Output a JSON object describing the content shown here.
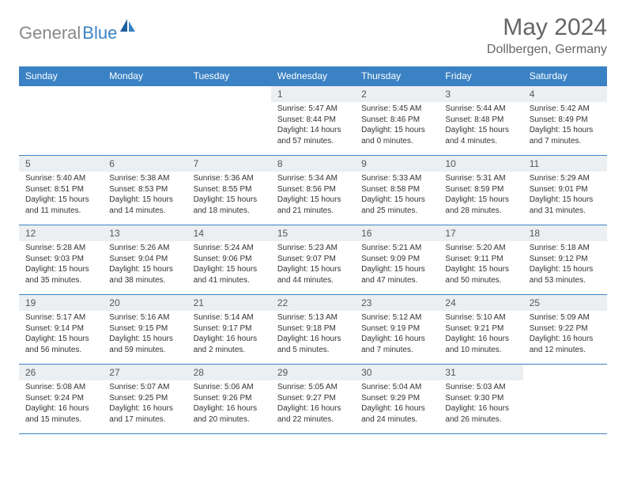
{
  "brand": {
    "part1": "General",
    "part2": "Blue"
  },
  "title": "May 2024",
  "location": "Dollbergen, Germany",
  "colors": {
    "header_bg": "#3b82c4",
    "header_text": "#ffffff",
    "daynum_bg": "#eceff1",
    "border": "#3b82c4",
    "body_text": "#333333",
    "title_text": "#666666"
  },
  "weekdays": [
    "Sunday",
    "Monday",
    "Tuesday",
    "Wednesday",
    "Thursday",
    "Friday",
    "Saturday"
  ],
  "weeks": [
    [
      {
        "n": "",
        "sr": "",
        "ss": "",
        "dl": ""
      },
      {
        "n": "",
        "sr": "",
        "ss": "",
        "dl": ""
      },
      {
        "n": "",
        "sr": "",
        "ss": "",
        "dl": ""
      },
      {
        "n": "1",
        "sr": "Sunrise: 5:47 AM",
        "ss": "Sunset: 8:44 PM",
        "dl": "Daylight: 14 hours and 57 minutes."
      },
      {
        "n": "2",
        "sr": "Sunrise: 5:45 AM",
        "ss": "Sunset: 8:46 PM",
        "dl": "Daylight: 15 hours and 0 minutes."
      },
      {
        "n": "3",
        "sr": "Sunrise: 5:44 AM",
        "ss": "Sunset: 8:48 PM",
        "dl": "Daylight: 15 hours and 4 minutes."
      },
      {
        "n": "4",
        "sr": "Sunrise: 5:42 AM",
        "ss": "Sunset: 8:49 PM",
        "dl": "Daylight: 15 hours and 7 minutes."
      }
    ],
    [
      {
        "n": "5",
        "sr": "Sunrise: 5:40 AM",
        "ss": "Sunset: 8:51 PM",
        "dl": "Daylight: 15 hours and 11 minutes."
      },
      {
        "n": "6",
        "sr": "Sunrise: 5:38 AM",
        "ss": "Sunset: 8:53 PM",
        "dl": "Daylight: 15 hours and 14 minutes."
      },
      {
        "n": "7",
        "sr": "Sunrise: 5:36 AM",
        "ss": "Sunset: 8:55 PM",
        "dl": "Daylight: 15 hours and 18 minutes."
      },
      {
        "n": "8",
        "sr": "Sunrise: 5:34 AM",
        "ss": "Sunset: 8:56 PM",
        "dl": "Daylight: 15 hours and 21 minutes."
      },
      {
        "n": "9",
        "sr": "Sunrise: 5:33 AM",
        "ss": "Sunset: 8:58 PM",
        "dl": "Daylight: 15 hours and 25 minutes."
      },
      {
        "n": "10",
        "sr": "Sunrise: 5:31 AM",
        "ss": "Sunset: 8:59 PM",
        "dl": "Daylight: 15 hours and 28 minutes."
      },
      {
        "n": "11",
        "sr": "Sunrise: 5:29 AM",
        "ss": "Sunset: 9:01 PM",
        "dl": "Daylight: 15 hours and 31 minutes."
      }
    ],
    [
      {
        "n": "12",
        "sr": "Sunrise: 5:28 AM",
        "ss": "Sunset: 9:03 PM",
        "dl": "Daylight: 15 hours and 35 minutes."
      },
      {
        "n": "13",
        "sr": "Sunrise: 5:26 AM",
        "ss": "Sunset: 9:04 PM",
        "dl": "Daylight: 15 hours and 38 minutes."
      },
      {
        "n": "14",
        "sr": "Sunrise: 5:24 AM",
        "ss": "Sunset: 9:06 PM",
        "dl": "Daylight: 15 hours and 41 minutes."
      },
      {
        "n": "15",
        "sr": "Sunrise: 5:23 AM",
        "ss": "Sunset: 9:07 PM",
        "dl": "Daylight: 15 hours and 44 minutes."
      },
      {
        "n": "16",
        "sr": "Sunrise: 5:21 AM",
        "ss": "Sunset: 9:09 PM",
        "dl": "Daylight: 15 hours and 47 minutes."
      },
      {
        "n": "17",
        "sr": "Sunrise: 5:20 AM",
        "ss": "Sunset: 9:11 PM",
        "dl": "Daylight: 15 hours and 50 minutes."
      },
      {
        "n": "18",
        "sr": "Sunrise: 5:18 AM",
        "ss": "Sunset: 9:12 PM",
        "dl": "Daylight: 15 hours and 53 minutes."
      }
    ],
    [
      {
        "n": "19",
        "sr": "Sunrise: 5:17 AM",
        "ss": "Sunset: 9:14 PM",
        "dl": "Daylight: 15 hours and 56 minutes."
      },
      {
        "n": "20",
        "sr": "Sunrise: 5:16 AM",
        "ss": "Sunset: 9:15 PM",
        "dl": "Daylight: 15 hours and 59 minutes."
      },
      {
        "n": "21",
        "sr": "Sunrise: 5:14 AM",
        "ss": "Sunset: 9:17 PM",
        "dl": "Daylight: 16 hours and 2 minutes."
      },
      {
        "n": "22",
        "sr": "Sunrise: 5:13 AM",
        "ss": "Sunset: 9:18 PM",
        "dl": "Daylight: 16 hours and 5 minutes."
      },
      {
        "n": "23",
        "sr": "Sunrise: 5:12 AM",
        "ss": "Sunset: 9:19 PM",
        "dl": "Daylight: 16 hours and 7 minutes."
      },
      {
        "n": "24",
        "sr": "Sunrise: 5:10 AM",
        "ss": "Sunset: 9:21 PM",
        "dl": "Daylight: 16 hours and 10 minutes."
      },
      {
        "n": "25",
        "sr": "Sunrise: 5:09 AM",
        "ss": "Sunset: 9:22 PM",
        "dl": "Daylight: 16 hours and 12 minutes."
      }
    ],
    [
      {
        "n": "26",
        "sr": "Sunrise: 5:08 AM",
        "ss": "Sunset: 9:24 PM",
        "dl": "Daylight: 16 hours and 15 minutes."
      },
      {
        "n": "27",
        "sr": "Sunrise: 5:07 AM",
        "ss": "Sunset: 9:25 PM",
        "dl": "Daylight: 16 hours and 17 minutes."
      },
      {
        "n": "28",
        "sr": "Sunrise: 5:06 AM",
        "ss": "Sunset: 9:26 PM",
        "dl": "Daylight: 16 hours and 20 minutes."
      },
      {
        "n": "29",
        "sr": "Sunrise: 5:05 AM",
        "ss": "Sunset: 9:27 PM",
        "dl": "Daylight: 16 hours and 22 minutes."
      },
      {
        "n": "30",
        "sr": "Sunrise: 5:04 AM",
        "ss": "Sunset: 9:29 PM",
        "dl": "Daylight: 16 hours and 24 minutes."
      },
      {
        "n": "31",
        "sr": "Sunrise: 5:03 AM",
        "ss": "Sunset: 9:30 PM",
        "dl": "Daylight: 16 hours and 26 minutes."
      },
      {
        "n": "",
        "sr": "",
        "ss": "",
        "dl": ""
      }
    ]
  ]
}
